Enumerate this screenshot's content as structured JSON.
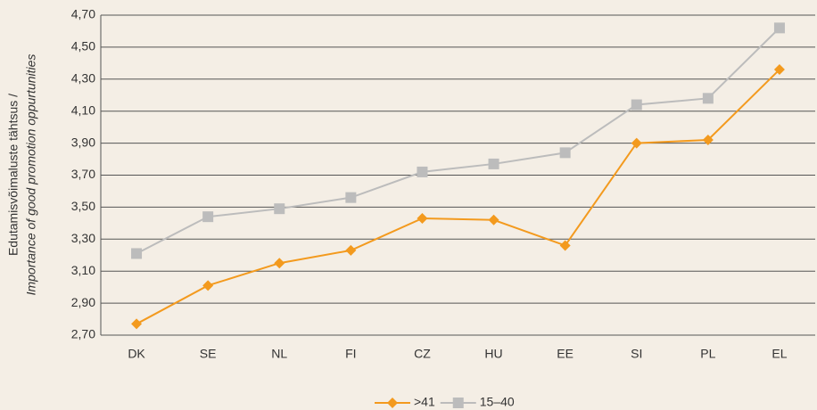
{
  "chart_data": {
    "type": "line",
    "y_label": [
      "Edutamisvõimaluste tähtsus /",
      "Importance of good promotion oppurtunities"
    ],
    "categories": [
      "DK",
      "SE",
      "NL",
      "FI",
      "CZ",
      "HU",
      "EE",
      "SI",
      "PL",
      "EL"
    ],
    "series": [
      {
        "name": ">41",
        "color": "#f39a1e",
        "marker": "diamond",
        "values": [
          2.77,
          3.01,
          3.15,
          3.23,
          3.43,
          3.42,
          3.26,
          3.9,
          3.92,
          4.36
        ]
      },
      {
        "name": "15–40",
        "color": "#bcbcbc",
        "marker": "square",
        "values": [
          3.21,
          3.44,
          3.49,
          3.56,
          3.72,
          3.77,
          3.84,
          4.14,
          4.18,
          4.62
        ]
      }
    ],
    "ylim": [
      2.7,
      4.7
    ],
    "yticks": [
      {
        "value": 2.7,
        "label": "2,70"
      },
      {
        "value": 2.9,
        "label": "2,90"
      },
      {
        "value": 3.1,
        "label": "3,10"
      },
      {
        "value": 3.3,
        "label": "3,30"
      },
      {
        "value": 3.5,
        "label": "3,50"
      },
      {
        "value": 3.7,
        "label": "3,70"
      },
      {
        "value": 3.9,
        "label": "3,90"
      },
      {
        "value": 4.1,
        "label": "4,10"
      },
      {
        "value": 4.3,
        "label": "4,30"
      },
      {
        "value": 4.5,
        "label": "4,50"
      },
      {
        "value": 4.7,
        "label": "4,70"
      }
    ],
    "grid": true,
    "legend": "bottom"
  }
}
